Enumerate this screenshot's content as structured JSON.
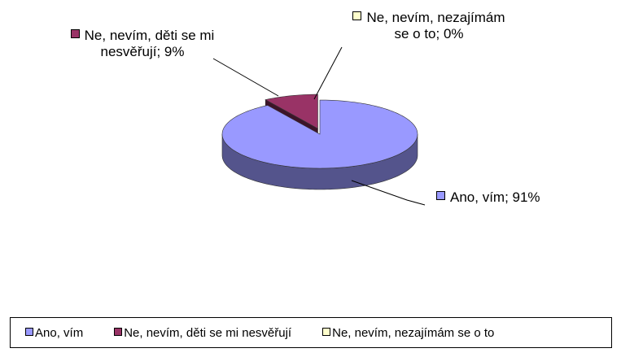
{
  "chart_data": {
    "type": "pie",
    "categories": [
      "Ano, vím",
      "Ne, nevím, děti se mi nesvěřují",
      "Ne, nevím, nezajímám se o to"
    ],
    "values": [
      91,
      9,
      0
    ],
    "value_labels": [
      "Ano, vím; 91%",
      "Ne, nevím, děti se mi nesvěřují; 9%",
      "Ne, nevím, nezajímám se o to; 0%"
    ],
    "colors": [
      "#9999ff",
      "#993366",
      "#ffffcc"
    ],
    "legend": "bottom"
  }
}
